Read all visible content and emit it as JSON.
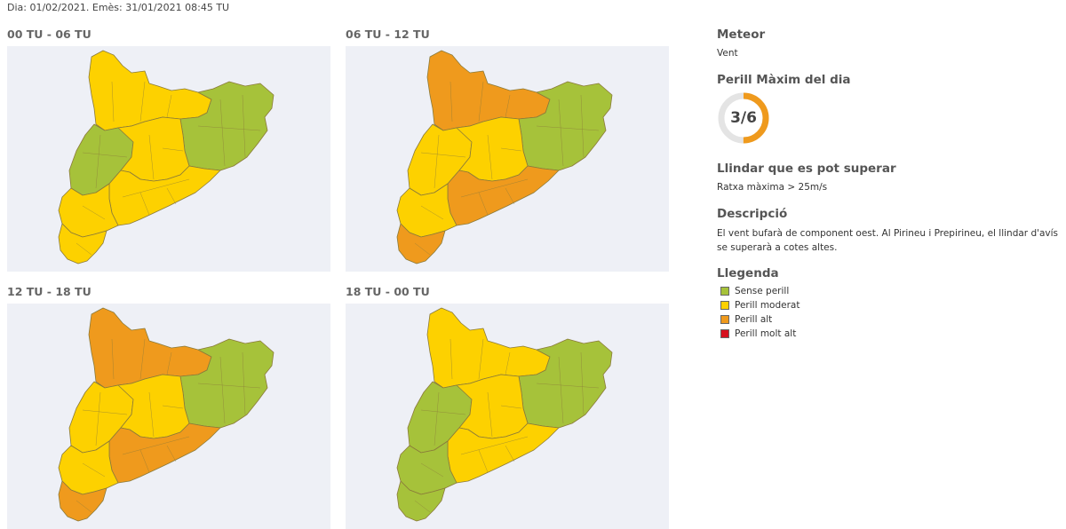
{
  "header": {
    "text": "Dia: 01/02/2021. Emès: 31/01/2021 08:45 TU"
  },
  "colors": {
    "sense_perill": "#a6c23a",
    "perill_moderat": "#fdd100",
    "perill_alt": "#ef9a1d",
    "perill_molt_alt": "#d6101e",
    "map_background": "#eef0f6",
    "gauge_track": "#e4e4e4",
    "gauge_fill": "#ef9a1d"
  },
  "maps": [
    {
      "title": "00 TU - 06 TU",
      "zones": {
        "north": "perill_moderat",
        "northeast": "sense_perill",
        "west": "sense_perill",
        "center": "perill_moderat",
        "central_coast": "perill_moderat",
        "southwest": "perill_moderat",
        "south": "perill_moderat"
      }
    },
    {
      "title": "06 TU - 12 TU",
      "zones": {
        "north": "perill_alt",
        "northeast": "sense_perill",
        "west": "perill_moderat",
        "center": "perill_moderat",
        "central_coast": "perill_alt",
        "southwest": "perill_moderat",
        "south": "perill_alt"
      }
    },
    {
      "title": "12 TU - 18 TU",
      "zones": {
        "north": "perill_alt",
        "northeast": "sense_perill",
        "west": "perill_moderat",
        "center": "perill_moderat",
        "central_coast": "perill_alt",
        "southwest": "perill_moderat",
        "south": "perill_alt"
      }
    },
    {
      "title": "18 TU - 00 TU",
      "zones": {
        "north": "perill_moderat",
        "northeast": "sense_perill",
        "west": "sense_perill",
        "center": "perill_moderat",
        "central_coast": "perill_moderat",
        "southwest": "sense_perill",
        "south": "sense_perill"
      }
    }
  ],
  "side": {
    "meteor_title": "Meteor",
    "meteor_value": "Vent",
    "perill_title": "Perill Màxim del dia",
    "perill_value": "3/6",
    "perill_level": 3,
    "perill_max": 6,
    "llindar_title": "Llindar que es pot superar",
    "llindar_value": "Ratxa màxima > 25m/s",
    "descripcio_title": "Descripció",
    "descripcio_text": "El vent bufarà de component oest. Al Pirineu i Prepirineu, el llindar d'avís se superarà a cotes altes.",
    "llegenda_title": "Llegenda",
    "legend": [
      {
        "label": "Sense perill",
        "color": "#a6c23a"
      },
      {
        "label": "Perill moderat",
        "color": "#fdd100"
      },
      {
        "label": "Perill alt",
        "color": "#ef9a1d"
      },
      {
        "label": "Perill molt alt",
        "color": "#d6101e"
      }
    ]
  }
}
